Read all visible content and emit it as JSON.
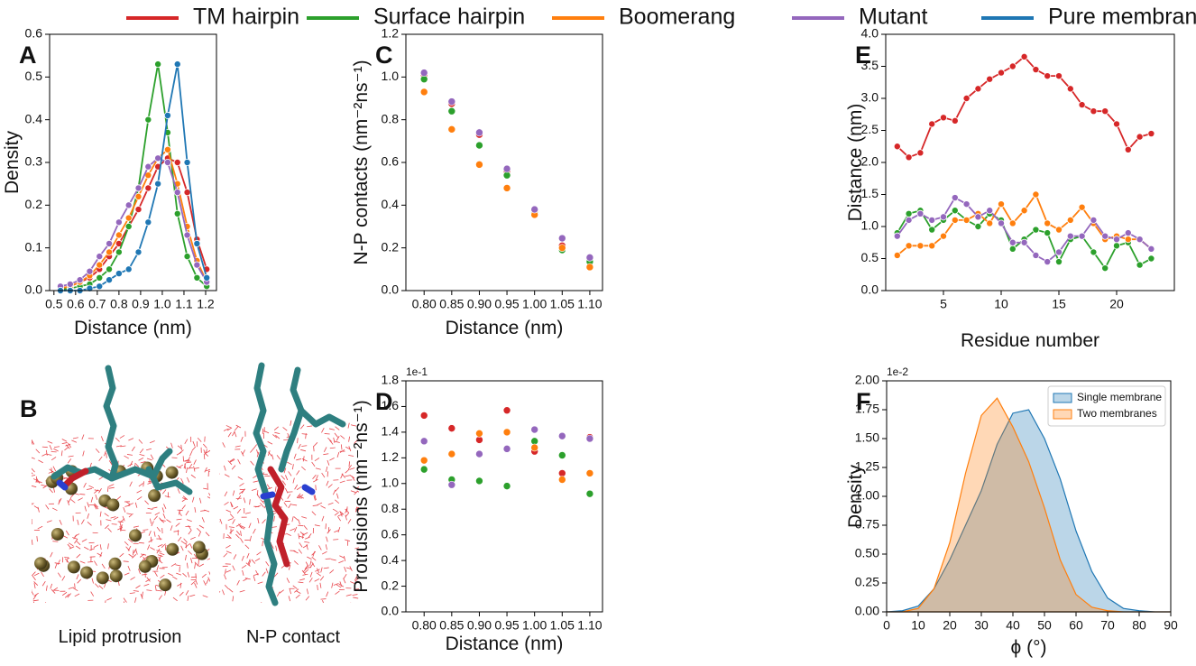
{
  "image_panel": {
    "panel": "B",
    "captions": [
      "Lipid protrusion",
      "N-P contact"
    ]
  },
  "chart_data": [
    {
      "type": "line",
      "panel": "A",
      "xlabel": "Distance (nm)",
      "ylabel": "Density",
      "x": [
        0.53,
        0.575,
        0.62,
        0.665,
        0.71,
        0.755,
        0.8,
        0.845,
        0.89,
        0.935,
        0.98,
        1.025,
        1.07,
        1.115,
        1.16,
        1.205
      ],
      "series": [
        {
          "name": "TM hairpin",
          "color": "#d62728",
          "values": [
            0.005,
            0.01,
            0.02,
            0.03,
            0.05,
            0.08,
            0.11,
            0.15,
            0.19,
            0.24,
            0.29,
            0.31,
            0.3,
            0.23,
            0.12,
            0.05
          ]
        },
        {
          "name": "Surface hairpin",
          "color": "#2ca02c",
          "values": [
            0.002,
            0.005,
            0.01,
            0.015,
            0.03,
            0.05,
            0.09,
            0.15,
            0.24,
            0.4,
            0.53,
            0.37,
            0.18,
            0.08,
            0.03,
            0.01
          ]
        },
        {
          "name": "Boomerang",
          "color": "#ff7f0e",
          "values": [
            0.005,
            0.01,
            0.02,
            0.035,
            0.06,
            0.09,
            0.13,
            0.17,
            0.22,
            0.27,
            0.31,
            0.33,
            0.25,
            0.15,
            0.07,
            0.02
          ]
        },
        {
          "name": "Mutant",
          "color": "#9467bd",
          "values": [
            0.01,
            0.015,
            0.025,
            0.045,
            0.08,
            0.11,
            0.16,
            0.2,
            0.24,
            0.29,
            0.31,
            0.3,
            0.23,
            0.13,
            0.06,
            0.02
          ]
        },
        {
          "name": "Pure membrane",
          "color": "#1f77b4",
          "values": [
            0,
            0,
            0,
            0.005,
            0.01,
            0.025,
            0.04,
            0.05,
            0.09,
            0.16,
            0.25,
            0.41,
            0.53,
            0.3,
            0.11,
            0.03
          ]
        }
      ],
      "xlim": [
        0.48,
        1.25
      ],
      "xticks": [
        0.5,
        0.6,
        0.7,
        0.8,
        0.9,
        {
          "value": 1,
          "label": "1.0"
        },
        1.1,
        1.2
      ],
      "ylim": [
        0,
        0.6
      ],
      "yticks": [
        {
          "value": 0,
          "label": "0.0"
        },
        0.1,
        0.2,
        0.3,
        0.4,
        0.5,
        0.6
      ]
    },
    {
      "type": "scatter",
      "panel": "C",
      "xlabel": "Distance (nm)",
      "ylabel": "N-P contacts (nm⁻²ns⁻¹)",
      "x": [
        0.8,
        0.85,
        0.9,
        0.95,
        1.0,
        1.05,
        1.1
      ],
      "series": [
        {
          "name": "TM hairpin",
          "color": "#d62728",
          "values": [
            1.01,
            0.875,
            0.73,
            0.56,
            0.37,
            0.21,
            0.15
          ]
        },
        {
          "name": "Surface hairpin",
          "color": "#2ca02c",
          "values": [
            0.99,
            0.84,
            0.68,
            0.54,
            0.36,
            0.19,
            0.135
          ]
        },
        {
          "name": "Boomerang",
          "color": "#ff7f0e",
          "values": [
            0.93,
            0.755,
            0.59,
            0.48,
            0.355,
            0.2,
            0.11
          ]
        },
        {
          "name": "Mutant",
          "color": "#9467bd",
          "values": [
            1.02,
            0.885,
            0.74,
            0.57,
            0.38,
            0.245,
            0.155
          ]
        }
      ],
      "xlim": [
        0.767,
        1.123
      ],
      "xticks": [
        {
          "value": 0.8,
          "label": "0.80"
        },
        0.85,
        {
          "value": 0.9,
          "label": "0.90"
        },
        0.95,
        {
          "value": 1,
          "label": "1.00"
        },
        1.05,
        {
          "value": 1.1,
          "label": "1.10"
        }
      ],
      "ylim": [
        0,
        1.2
      ],
      "yticks": [
        {
          "value": 0,
          "label": "0.0"
        },
        0.2,
        0.4,
        0.6,
        0.8,
        {
          "value": 1,
          "label": "1.0"
        },
        1.2
      ]
    },
    {
      "type": "scatter",
      "panel": "D",
      "xlabel": "Distance (nm)",
      "ylabel": "Protrusions (nm⁻²ns⁻¹)",
      "y_offset_label": "1e-1",
      "x": [
        0.8,
        0.85,
        0.9,
        0.95,
        1.0,
        1.05,
        1.1
      ],
      "series": [
        {
          "name": "TM hairpin",
          "color": "#d62728",
          "values": [
            1.53,
            1.43,
            1.34,
            1.57,
            1.25,
            1.08,
            1.36
          ]
        },
        {
          "name": "Surface hairpin",
          "color": "#2ca02c",
          "values": [
            1.11,
            1.03,
            1.02,
            0.98,
            1.33,
            1.22,
            0.92
          ]
        },
        {
          "name": "Boomerang",
          "color": "#ff7f0e",
          "values": [
            1.18,
            1.23,
            1.39,
            1.4,
            1.28,
            1.03,
            1.08
          ]
        },
        {
          "name": "Mutant",
          "color": "#9467bd",
          "values": [
            1.33,
            0.99,
            1.23,
            1.27,
            1.42,
            1.37,
            1.35
          ]
        }
      ],
      "xlim": [
        0.767,
        1.123
      ],
      "xticks": [
        {
          "value": 0.8,
          "label": "0.80"
        },
        0.85,
        {
          "value": 0.9,
          "label": "0.90"
        },
        0.95,
        {
          "value": 1,
          "label": "1.00"
        },
        1.05,
        {
          "value": 1.1,
          "label": "1.10"
        }
      ],
      "ylim": [
        0,
        1.8
      ],
      "yticks": [
        {
          "value": 0,
          "label": "0.0"
        },
        0.2,
        0.4,
        0.6,
        0.8,
        {
          "value": 1,
          "label": "1.0"
        },
        1.2,
        1.4,
        1.6,
        1.8
      ]
    },
    {
      "type": "line",
      "panel": "E",
      "xlabel": "Residue number",
      "ylabel": "Distance (nm)",
      "x": [
        1,
        2,
        3,
        4,
        5,
        6,
        7,
        8,
        9,
        10,
        11,
        12,
        13,
        14,
        15,
        16,
        17,
        18,
        19,
        20,
        21,
        22,
        23
      ],
      "series": [
        {
          "name": "TM hairpin",
          "color": "#d62728",
          "values": [
            2.25,
            2.08,
            2.15,
            2.6,
            2.7,
            2.65,
            3.0,
            3.15,
            3.3,
            3.4,
            3.5,
            3.65,
            3.45,
            3.35,
            3.35,
            3.15,
            2.9,
            2.8,
            2.8,
            2.6,
            2.2,
            2.4,
            2.45
          ]
        },
        {
          "name": "Surface hairpin",
          "color": "#2ca02c",
          "values": [
            0.9,
            1.2,
            1.25,
            0.95,
            1.1,
            1.25,
            1.1,
            1.0,
            1.2,
            1.1,
            0.65,
            0.8,
            0.95,
            0.9,
            0.45,
            0.8,
            0.85,
            0.6,
            0.35,
            0.7,
            0.75,
            0.4,
            0.5
          ]
        },
        {
          "name": "Boomerang",
          "color": "#ff7f0e",
          "values": [
            0.55,
            0.7,
            0.7,
            0.7,
            0.85,
            1.1,
            1.1,
            1.2,
            1.05,
            1.35,
            1.05,
            1.25,
            1.5,
            1.05,
            0.95,
            1.1,
            1.3,
            1.05,
            0.8,
            0.85,
            0.8,
            0.8,
            0.65
          ]
        },
        {
          "name": "Mutant",
          "color": "#9467bd",
          "values": [
            0.85,
            1.1,
            1.2,
            1.1,
            1.15,
            1.45,
            1.35,
            1.15,
            1.25,
            1.05,
            0.75,
            0.75,
            0.55,
            0.45,
            0.6,
            0.85,
            0.85,
            1.1,
            0.85,
            0.8,
            0.9,
            0.8,
            0.65
          ]
        }
      ],
      "xlim": [
        0,
        25
      ],
      "xticks": [
        5,
        10,
        15,
        20
      ],
      "ylim": [
        0,
        4
      ],
      "yticks": [
        {
          "value": 0,
          "label": "0.0"
        },
        0.5,
        {
          "value": 1,
          "label": "1.0"
        },
        1.5,
        {
          "value": 2,
          "label": "2.0"
        },
        2.5,
        {
          "value": 3,
          "label": "3.0"
        },
        3.5,
        {
          "value": 4,
          "label": "4.0"
        }
      ]
    },
    {
      "type": "area",
      "panel": "F",
      "xlabel": "ϕ (°)",
      "ylabel": "Density",
      "y_offset_label": "1e-2",
      "legend": "upper right",
      "x": [
        0,
        5,
        10,
        15,
        20,
        25,
        30,
        35,
        40,
        45,
        50,
        55,
        60,
        65,
        70,
        75,
        80,
        85,
        90
      ],
      "series": [
        {
          "name": "Single membrane",
          "color": "#1f77b4",
          "values": [
            0,
            0.01,
            0.05,
            0.2,
            0.45,
            0.75,
            1.05,
            1.45,
            1.72,
            1.75,
            1.5,
            1.15,
            0.7,
            0.35,
            0.12,
            0.03,
            0.01,
            0,
            0
          ]
        },
        {
          "name": "Two membranes",
          "color": "#ff7f0e",
          "values": [
            0,
            0,
            0.03,
            0.2,
            0.6,
            1.2,
            1.7,
            1.85,
            1.6,
            1.3,
            0.9,
            0.45,
            0.15,
            0.04,
            0.01,
            0,
            0,
            0,
            0
          ]
        }
      ],
      "xlim": [
        0,
        90
      ],
      "xticks": [
        0,
        10,
        20,
        30,
        40,
        50,
        60,
        70,
        80,
        90
      ],
      "ylim": [
        0,
        2
      ],
      "yticks": [
        {
          "value": 0,
          "label": "0.00"
        },
        0.25,
        {
          "value": 0.5,
          "label": "0.50"
        },
        0.75,
        {
          "value": 1,
          "label": "1.00"
        },
        1.25,
        {
          "value": 1.5,
          "label": "1.50"
        },
        1.75,
        {
          "value": 2,
          "label": "2.00"
        }
      ]
    }
  ]
}
